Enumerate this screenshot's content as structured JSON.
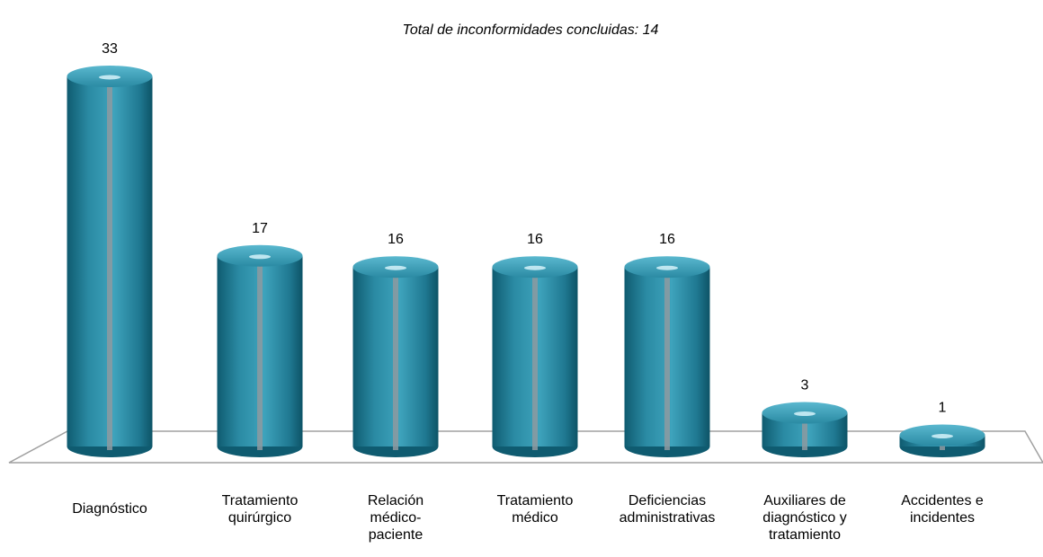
{
  "chart_data": {
    "type": "bar",
    "title": "Total de inconformidades concluidas: 14",
    "categories": [
      "Diagnóstico",
      "Tratamiento\nquirúrgico",
      "Relación\nmédico-\npaciente",
      "Tratamiento\nmédico",
      "Deficiencias\nadministrativas",
      "Auxiliares de\ndiagnóstico y\ntratamiento",
      "Accidentes e\nincidentes"
    ],
    "values": [
      33,
      17,
      16,
      16,
      16,
      3,
      1
    ],
    "color": "#2b8ba3"
  }
}
